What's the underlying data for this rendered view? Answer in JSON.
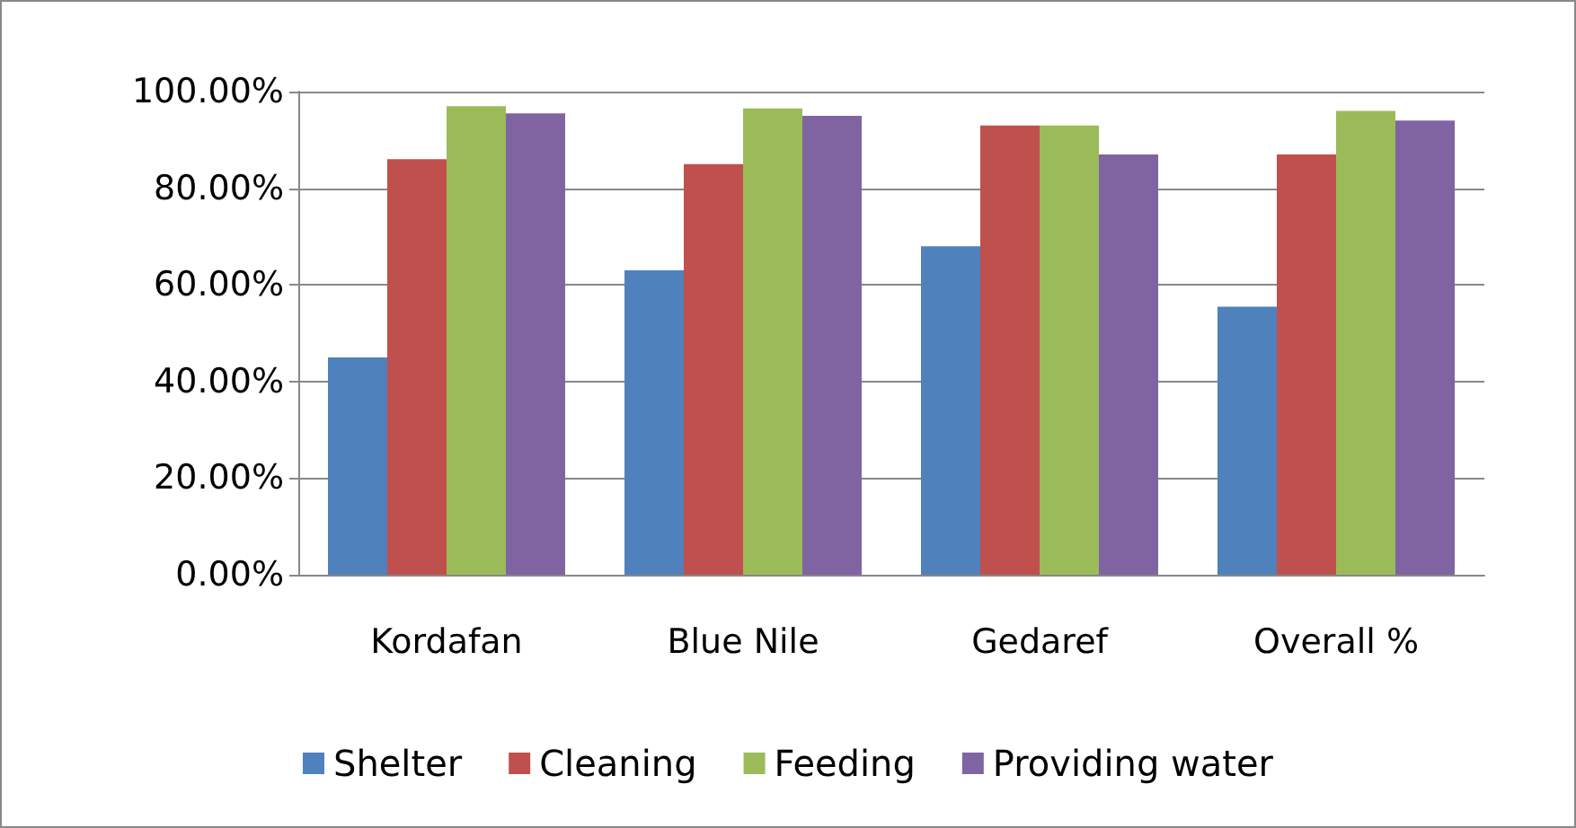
{
  "chart_data": {
    "type": "bar",
    "categories": [
      "Kordafan",
      "Blue Nile",
      "Gedaref",
      "Overall %"
    ],
    "series": [
      {
        "name": "Shelter",
        "color": "#4f81bd",
        "values": [
          45,
          63,
          68,
          55.5
        ]
      },
      {
        "name": "Cleaning",
        "color": "#c0504d",
        "values": [
          86,
          85,
          93,
          87
        ]
      },
      {
        "name": "Feeding",
        "color": "#9bbb59",
        "values": [
          97,
          96.5,
          93,
          96
        ]
      },
      {
        "name": "Providing water",
        "color": "#8064a2",
        "values": [
          95.5,
          95,
          87,
          94
        ]
      }
    ],
    "ylim": [
      0,
      100
    ],
    "yticks": [
      {
        "value": 0,
        "label": "0.00%"
      },
      {
        "value": 20,
        "label": "20.00%"
      },
      {
        "value": 40,
        "label": "40.00%"
      },
      {
        "value": 60,
        "label": "60.00%"
      },
      {
        "value": 80,
        "label": "80.00%"
      },
      {
        "value": 100,
        "label": "100.00%"
      }
    ],
    "grid": "y",
    "legend": "bottom"
  }
}
